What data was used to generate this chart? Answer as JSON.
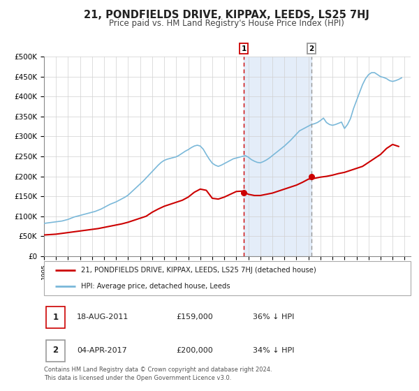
{
  "title": "21, PONDFIELDS DRIVE, KIPPAX, LEEDS, LS25 7HJ",
  "subtitle": "Price paid vs. HM Land Registry's House Price Index (HPI)",
  "title_fontsize": 10.5,
  "subtitle_fontsize": 8.5,
  "hpi_color": "#7ab8d9",
  "price_color": "#cc0000",
  "ylim": [
    0,
    500000
  ],
  "yticks": [
    0,
    50000,
    100000,
    150000,
    200000,
    250000,
    300000,
    350000,
    400000,
    450000,
    500000
  ],
  "ytick_labels": [
    "£0",
    "£50K",
    "£100K",
    "£150K",
    "£200K",
    "£250K",
    "£300K",
    "£350K",
    "£400K",
    "£450K",
    "£500K"
  ],
  "xlim_start": 1995.0,
  "xlim_end": 2025.5,
  "xticks": [
    1995,
    1996,
    1997,
    1998,
    1999,
    2000,
    2001,
    2002,
    2003,
    2004,
    2005,
    2006,
    2007,
    2008,
    2009,
    2010,
    2011,
    2012,
    2013,
    2014,
    2015,
    2016,
    2017,
    2018,
    2019,
    2020,
    2021,
    2022,
    2023,
    2024,
    2025
  ],
  "event1_x": 2011.625,
  "event1_price": 159000,
  "event2_x": 2017.25,
  "event2_price": 200000,
  "legend_label_price": "21, PONDFIELDS DRIVE, KIPPAX, LEEDS, LS25 7HJ (detached house)",
  "legend_label_hpi": "HPI: Average price, detached house, Leeds",
  "table_row1": [
    "1",
    "18-AUG-2011",
    "£159,000",
    "36% ↓ HPI"
  ],
  "table_row2": [
    "2",
    "04-APR-2017",
    "£200,000",
    "34% ↓ HPI"
  ],
  "footer": "Contains HM Land Registry data © Crown copyright and database right 2024.\nThis data is licensed under the Open Government Licence v3.0.",
  "hpi_x": [
    1995.0,
    1995.25,
    1995.5,
    1995.75,
    1996.0,
    1996.25,
    1996.5,
    1996.75,
    1997.0,
    1997.25,
    1997.5,
    1997.75,
    1998.0,
    1998.25,
    1998.5,
    1998.75,
    1999.0,
    1999.25,
    1999.5,
    1999.75,
    2000.0,
    2000.25,
    2000.5,
    2000.75,
    2001.0,
    2001.25,
    2001.5,
    2001.75,
    2002.0,
    2002.25,
    2002.5,
    2002.75,
    2003.0,
    2003.25,
    2003.5,
    2003.75,
    2004.0,
    2004.25,
    2004.5,
    2004.75,
    2005.0,
    2005.25,
    2005.5,
    2005.75,
    2006.0,
    2006.25,
    2006.5,
    2006.75,
    2007.0,
    2007.25,
    2007.5,
    2007.75,
    2008.0,
    2008.25,
    2008.5,
    2008.75,
    2009.0,
    2009.25,
    2009.5,
    2009.75,
    2010.0,
    2010.25,
    2010.5,
    2010.75,
    2011.0,
    2011.25,
    2011.5,
    2011.75,
    2012.0,
    2012.25,
    2012.5,
    2012.75,
    2013.0,
    2013.25,
    2013.5,
    2013.75,
    2014.0,
    2014.25,
    2014.5,
    2014.75,
    2015.0,
    2015.25,
    2015.5,
    2015.75,
    2016.0,
    2016.25,
    2016.5,
    2016.75,
    2017.0,
    2017.25,
    2017.5,
    2017.75,
    2018.0,
    2018.25,
    2018.5,
    2018.75,
    2019.0,
    2019.25,
    2019.5,
    2019.75,
    2020.0,
    2020.25,
    2020.5,
    2020.75,
    2021.0,
    2021.25,
    2021.5,
    2021.75,
    2022.0,
    2022.25,
    2022.5,
    2022.75,
    2023.0,
    2023.25,
    2023.5,
    2023.75,
    2024.0,
    2024.25,
    2024.5,
    2024.75
  ],
  "hpi_y": [
    82000,
    83000,
    84000,
    85000,
    86000,
    87000,
    88000,
    90000,
    92000,
    95000,
    98000,
    100000,
    102000,
    104000,
    106000,
    108000,
    110000,
    112000,
    115000,
    118000,
    122000,
    126000,
    130000,
    133000,
    136000,
    140000,
    144000,
    148000,
    153000,
    160000,
    167000,
    174000,
    181000,
    188000,
    196000,
    204000,
    212000,
    220000,
    228000,
    235000,
    240000,
    243000,
    245000,
    247000,
    249000,
    253000,
    258000,
    263000,
    267000,
    272000,
    276000,
    278000,
    276000,
    268000,
    255000,
    243000,
    233000,
    228000,
    225000,
    228000,
    232000,
    236000,
    240000,
    244000,
    246000,
    248000,
    250000,
    252000,
    248000,
    242000,
    238000,
    235000,
    234000,
    237000,
    241000,
    246000,
    252000,
    258000,
    264000,
    270000,
    276000,
    283000,
    290000,
    298000,
    306000,
    314000,
    318000,
    322000,
    326000,
    330000,
    332000,
    335000,
    340000,
    346000,
    335000,
    330000,
    328000,
    330000,
    333000,
    336000,
    320000,
    330000,
    345000,
    370000,
    390000,
    410000,
    430000,
    445000,
    455000,
    460000,
    460000,
    455000,
    450000,
    448000,
    445000,
    440000,
    438000,
    440000,
    443000,
    447000
  ],
  "price_x": [
    1995.0,
    1995.5,
    1996.0,
    1996.5,
    1997.0,
    1997.5,
    1998.0,
    1998.5,
    1999.0,
    1999.5,
    2000.0,
    2000.5,
    2001.0,
    2001.5,
    2002.0,
    2002.5,
    2003.0,
    2003.5,
    2004.0,
    2004.5,
    2005.0,
    2005.5,
    2006.0,
    2006.5,
    2007.0,
    2007.5,
    2008.0,
    2008.5,
    2009.0,
    2009.5,
    2010.0,
    2010.5,
    2011.0,
    2011.5,
    2012.0,
    2012.5,
    2013.0,
    2013.5,
    2014.0,
    2014.5,
    2015.0,
    2015.5,
    2016.0,
    2016.5,
    2017.0,
    2017.5,
    2018.0,
    2018.5,
    2019.0,
    2019.5,
    2020.0,
    2020.5,
    2021.0,
    2021.5,
    2022.0,
    2022.5,
    2023.0,
    2023.5,
    2024.0,
    2024.5
  ],
  "price_y": [
    53000,
    54000,
    55000,
    57000,
    59000,
    61000,
    63000,
    65000,
    67000,
    69000,
    72000,
    75000,
    78000,
    81000,
    85000,
    90000,
    95000,
    100000,
    110000,
    118000,
    125000,
    130000,
    135000,
    140000,
    148000,
    160000,
    168000,
    165000,
    145000,
    143000,
    148000,
    155000,
    162000,
    163000,
    155000,
    152000,
    152000,
    155000,
    158000,
    163000,
    168000,
    173000,
    178000,
    185000,
    193000,
    195000,
    198000,
    200000,
    203000,
    207000,
    210000,
    215000,
    220000,
    225000,
    235000,
    245000,
    255000,
    270000,
    280000,
    275000
  ]
}
